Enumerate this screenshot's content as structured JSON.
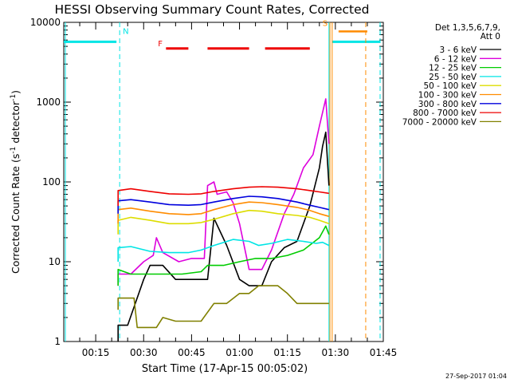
{
  "chart_data": {
    "type": "line",
    "title": "HESSI Observing Summary Count Rates, Corrected",
    "xlabel": "Start Time (17-Apr-15 00:05:02)",
    "ylabel_main": "Corrected Count Rate (s",
    "ylabel_sup1": "-1",
    "ylabel_mid": " detector",
    "ylabel_sup2": "-1",
    "ylabel_end": ")",
    "y_scale": "log",
    "ylim": [
      1,
      10000
    ],
    "xlim_minutes": [
      5,
      105
    ],
    "x_ticks": [
      {
        "m": 15,
        "label": "00:15"
      },
      {
        "m": 30,
        "label": "00:30"
      },
      {
        "m": 45,
        "label": "00:45"
      },
      {
        "m": 60,
        "label": "01:00"
      },
      {
        "m": 75,
        "label": "01:15"
      },
      {
        "m": 90,
        "label": "01:30"
      },
      {
        "m": 105,
        "label": "01:45"
      }
    ],
    "y_ticks": [
      {
        "v": 1,
        "label": "1"
      },
      {
        "v": 10,
        "label": "10"
      },
      {
        "v": 100,
        "label": "100"
      },
      {
        "v": 1000,
        "label": "1000"
      },
      {
        "v": 10000,
        "label": "10000"
      }
    ],
    "legend_header": [
      "Det 1,3,5,6,7,9,",
      "Att 0"
    ],
    "series": [
      {
        "name": "3 - 6 keV",
        "color": "#000000",
        "points": [
          [
            22,
            1.0
          ],
          [
            22,
            1.6
          ],
          [
            25,
            1.6
          ],
          [
            30,
            6
          ],
          [
            32,
            9
          ],
          [
            36,
            9
          ],
          [
            40,
            6
          ],
          [
            46,
            6
          ],
          [
            50,
            6
          ],
          [
            52,
            35
          ],
          [
            56,
            16
          ],
          [
            60,
            6
          ],
          [
            63,
            5
          ],
          [
            67,
            5
          ],
          [
            70,
            10
          ],
          [
            74,
            15
          ],
          [
            78,
            18
          ],
          [
            82,
            50
          ],
          [
            85,
            150
          ],
          [
            86,
            280
          ],
          [
            87,
            420
          ],
          [
            88,
            90
          ]
        ]
      },
      {
        "name": "6 - 12 keV",
        "color": "#dd00dd",
        "points": [
          [
            22,
            5
          ],
          [
            22,
            7
          ],
          [
            26,
            7
          ],
          [
            30,
            10
          ],
          [
            33,
            12
          ],
          [
            34,
            20
          ],
          [
            36,
            13
          ],
          [
            41,
            10
          ],
          [
            45,
            11
          ],
          [
            49,
            11
          ],
          [
            50,
            90
          ],
          [
            52,
            100
          ],
          [
            53,
            70
          ],
          [
            56,
            75
          ],
          [
            58,
            55
          ],
          [
            60,
            30
          ],
          [
            63,
            8
          ],
          [
            67,
            8
          ],
          [
            70,
            14
          ],
          [
            74,
            40
          ],
          [
            77,
            70
          ],
          [
            80,
            150
          ],
          [
            83,
            220
          ],
          [
            85,
            500
          ],
          [
            87,
            1100
          ],
          [
            88,
            300
          ]
        ]
      },
      {
        "name": "12 - 25 keV",
        "color": "#00cc00",
        "points": [
          [
            22,
            5
          ],
          [
            22,
            8
          ],
          [
            26,
            7
          ],
          [
            30,
            7
          ],
          [
            36,
            7
          ],
          [
            42,
            7
          ],
          [
            48,
            7.5
          ],
          [
            50,
            9
          ],
          [
            55,
            9
          ],
          [
            60,
            10
          ],
          [
            65,
            11
          ],
          [
            70,
            11
          ],
          [
            75,
            12
          ],
          [
            80,
            14
          ],
          [
            85,
            20
          ],
          [
            87,
            28
          ],
          [
            88,
            22
          ]
        ]
      },
      {
        "name": "25 - 50 keV",
        "color": "#00e5e5",
        "points": [
          [
            22,
            10
          ],
          [
            22,
            15
          ],
          [
            26,
            15.5
          ],
          [
            32,
            13.5
          ],
          [
            38,
            13
          ],
          [
            44,
            13
          ],
          [
            48,
            14
          ],
          [
            52,
            16
          ],
          [
            58,
            19
          ],
          [
            63,
            18
          ],
          [
            66,
            16
          ],
          [
            70,
            17
          ],
          [
            75,
            19
          ],
          [
            80,
            18
          ],
          [
            84,
            17
          ],
          [
            86,
            17.5
          ],
          [
            88,
            16
          ]
        ]
      },
      {
        "name": "50 - 100 keV",
        "color": "#dddd00",
        "points": [
          [
            22,
            22
          ],
          [
            22,
            33
          ],
          [
            26,
            36
          ],
          [
            32,
            33
          ],
          [
            38,
            30
          ],
          [
            44,
            30
          ],
          [
            48,
            31
          ],
          [
            52,
            34
          ],
          [
            58,
            40
          ],
          [
            63,
            44
          ],
          [
            67,
            43
          ],
          [
            72,
            40
          ],
          [
            78,
            38
          ],
          [
            82,
            36
          ],
          [
            85,
            33
          ],
          [
            88,
            30
          ]
        ]
      },
      {
        "name": "100 - 300 keV",
        "color": "#ff8c00",
        "points": [
          [
            22,
            30
          ],
          [
            22,
            45
          ],
          [
            26,
            47
          ],
          [
            32,
            43
          ],
          [
            38,
            40
          ],
          [
            44,
            39
          ],
          [
            48,
            40
          ],
          [
            52,
            45
          ],
          [
            58,
            52
          ],
          [
            63,
            56
          ],
          [
            67,
            55
          ],
          [
            72,
            52
          ],
          [
            78,
            48
          ],
          [
            82,
            44
          ],
          [
            85,
            40
          ],
          [
            88,
            37
          ]
        ]
      },
      {
        "name": "300 - 800 keV",
        "color": "#0000dd",
        "points": [
          [
            22,
            40
          ],
          [
            22,
            58
          ],
          [
            26,
            60
          ],
          [
            32,
            56
          ],
          [
            38,
            52
          ],
          [
            44,
            51
          ],
          [
            48,
            52
          ],
          [
            52,
            56
          ],
          [
            58,
            62
          ],
          [
            63,
            66
          ],
          [
            67,
            65
          ],
          [
            72,
            62
          ],
          [
            78,
            56
          ],
          [
            82,
            51
          ],
          [
            85,
            48
          ],
          [
            88,
            45
          ]
        ]
      },
      {
        "name": "800 - 7000 keV",
        "color": "#ee0000",
        "points": [
          [
            22,
            50
          ],
          [
            22,
            78
          ],
          [
            26,
            82
          ],
          [
            32,
            76
          ],
          [
            38,
            71
          ],
          [
            44,
            70
          ],
          [
            48,
            71
          ],
          [
            52,
            76
          ],
          [
            58,
            82
          ],
          [
            63,
            86
          ],
          [
            67,
            87
          ],
          [
            72,
            86
          ],
          [
            78,
            82
          ],
          [
            82,
            78
          ],
          [
            85,
            75
          ],
          [
            88,
            72
          ]
        ]
      },
      {
        "name": "7000 - 20000 keV",
        "color": "#808000",
        "points": [
          [
            22,
            2.5
          ],
          [
            22,
            3.5
          ],
          [
            27,
            3.5
          ],
          [
            28,
            1.5
          ],
          [
            30,
            1.5
          ],
          [
            34,
            1.5
          ],
          [
            36,
            2
          ],
          [
            40,
            1.8
          ],
          [
            48,
            1.8
          ],
          [
            52,
            3
          ],
          [
            56,
            3
          ],
          [
            60,
            4
          ],
          [
            63,
            4
          ],
          [
            66,
            5
          ],
          [
            72,
            5
          ],
          [
            75,
            4
          ],
          [
            78,
            3
          ],
          [
            82,
            3
          ],
          [
            85,
            3
          ],
          [
            88,
            3
          ]
        ]
      }
    ],
    "annotations": [
      {
        "text": "N",
        "m": 23.5,
        "v": 7200,
        "color": "#00e5e5"
      },
      {
        "text": "F",
        "m": 34.5,
        "v": 5000,
        "color": "#ee0000"
      },
      {
        "text": "S",
        "m": 86,
        "v": 9000,
        "color": "#ff8c00"
      }
    ],
    "flare_bars": [
      [
        37,
        44
      ],
      [
        50,
        63
      ],
      [
        68,
        82
      ]
    ],
    "flare_color": "#ee0000",
    "night_bars": [
      [
        5,
        21.5
      ],
      [
        89,
        104
      ]
    ],
    "night_color": "#00e5e5",
    "night_lines": [
      {
        "m": 22.5,
        "style": "dashed"
      },
      {
        "m": 88,
        "style": "solid"
      },
      {
        "m": 104,
        "style": "dashed"
      },
      {
        "m": 5.5,
        "style": "solid"
      }
    ],
    "saa_bar": [
      91,
      100
    ],
    "saa_color": "#ff8c00",
    "saa_lines": [
      {
        "m": 89,
        "style": "solid"
      },
      {
        "m": 99.5,
        "style": "dashed"
      }
    ],
    "timestamp": "27-Sep-2017 01:04"
  }
}
